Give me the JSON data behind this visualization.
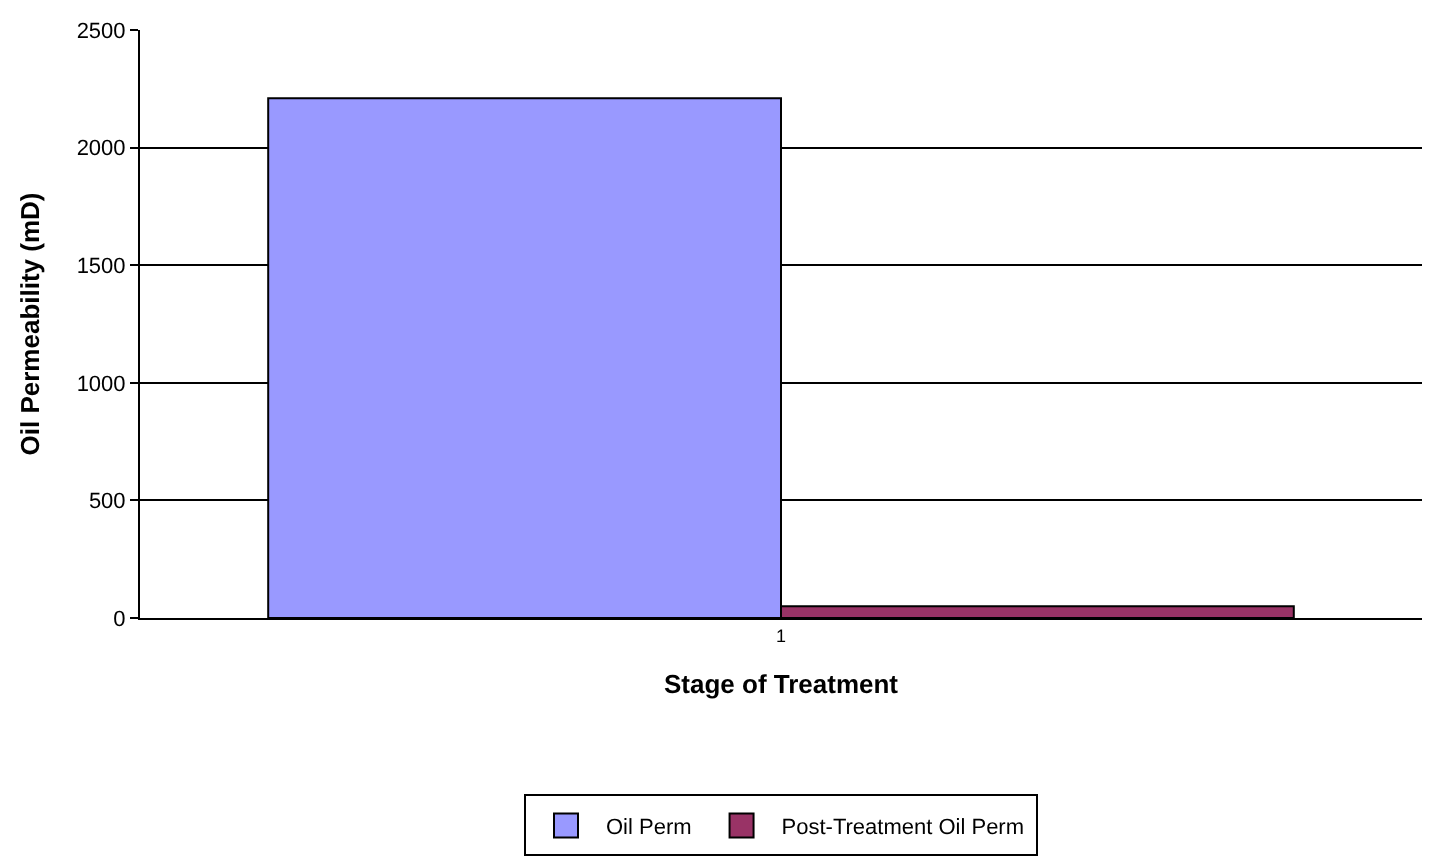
{
  "chart_data": {
    "type": "bar",
    "xlabel": "Stage of Treatment",
    "ylabel": "Oil Permeability (mD)",
    "categories": [
      "1"
    ],
    "series": [
      {
        "name": "Oil Perm",
        "color": "#9999ff",
        "values": [
          2210
        ]
      },
      {
        "name": "Post-Treatment Oil Perm",
        "color": "#993366",
        "values": [
          50
        ]
      }
    ],
    "ylim": [
      0,
      2500
    ],
    "yticks": [
      0,
      500,
      1000,
      1500,
      2000,
      2500
    ],
    "grid": "y",
    "legend": "bottom"
  }
}
